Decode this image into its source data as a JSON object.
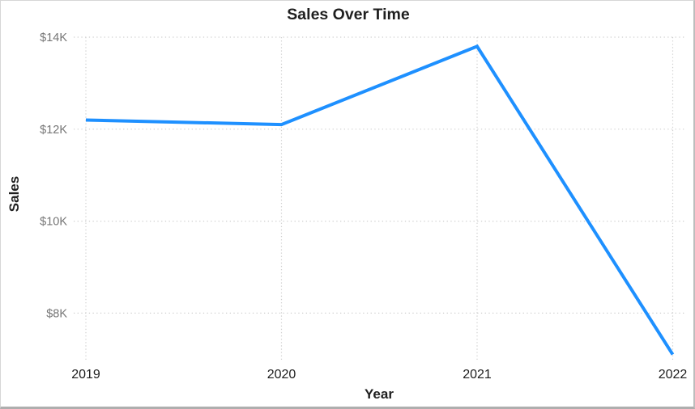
{
  "window": {
    "kind": "chart-figure",
    "background_color": "#ffffff",
    "border_color": "#bdbdbd"
  },
  "chart_data": {
    "type": "line",
    "title": "Sales Over Time",
    "xlabel": "Year",
    "ylabel": "Sales",
    "categories": [
      "2019",
      "2020",
      "2021",
      "2022"
    ],
    "series": [
      {
        "name": "Sales",
        "values": [
          12200,
          12100,
          13800,
          7100
        ]
      }
    ],
    "x_tick_labels": [
      "2019",
      "2020",
      "2021",
      "2022"
    ],
    "y_tick_values": [
      14000,
      12000,
      10000,
      8000
    ],
    "y_tick_labels": [
      "$14K",
      "$12K",
      "$10K",
      "$8K"
    ],
    "ylim": [
      7000,
      14050
    ],
    "grid": true,
    "grid_style": "dotted",
    "legend": false,
    "colors": {
      "line": "#1e90ff",
      "grid": "#cfcfcf",
      "title": "#1f1f1f",
      "x_tick": "#1c1c1c",
      "y_tick": "#767676",
      "axis_label": "#1f1f1f"
    }
  }
}
